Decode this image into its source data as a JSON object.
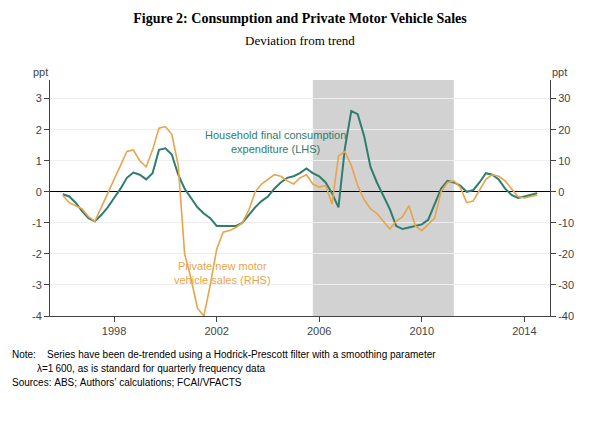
{
  "chart_data": {
    "type": "line",
    "title": "Figure 2: Consumption and Private Motor Vehicle Sales",
    "subtitle": "Deviation from trend",
    "ylabel": "ppt",
    "y2label": "ppt",
    "notes": [
      "Note:    Series have been de-trended using a Hodrick-Prescott filter with a smoothing parameter",
      "         λ=1 600, as is standard for quarterly frequency data",
      "Sources: ABS; Authors’ calculations; FCAI/VFACTS"
    ],
    "shading": {
      "start": 2005.75,
      "end": 2011.25,
      "color": "#d2d2d2"
    },
    "xlim": [
      1995.5,
      2015.0
    ],
    "xticks": [
      1998,
      2002,
      2006,
      2010,
      2014
    ],
    "ylim": [
      -4.0,
      3.6
    ],
    "yticks": [
      -4,
      -3,
      -2,
      -1,
      0,
      1,
      2,
      3
    ],
    "y2lim": [
      -40.0,
      36.0
    ],
    "y2ticks": [
      -40,
      -30,
      -20,
      -10,
      0,
      10,
      20,
      30
    ],
    "grid": true,
    "x": [
      1996.0,
      1996.25,
      1996.5,
      1996.75,
      1997.0,
      1997.25,
      1997.5,
      1997.75,
      1998.0,
      1998.25,
      1998.5,
      1998.75,
      1999.0,
      1999.25,
      1999.5,
      1999.75,
      2000.0,
      2000.25,
      2000.5,
      2000.75,
      2001.0,
      2001.25,
      2001.5,
      2001.75,
      2002.0,
      2002.25,
      2002.5,
      2002.75,
      2003.0,
      2003.25,
      2003.5,
      2003.75,
      2004.0,
      2004.25,
      2004.5,
      2004.75,
      2005.0,
      2005.25,
      2005.5,
      2005.75,
      2006.0,
      2006.25,
      2006.5,
      2006.75,
      2007.0,
      2007.25,
      2007.5,
      2007.75,
      2008.0,
      2008.25,
      2008.5,
      2008.75,
      2009.0,
      2009.25,
      2009.5,
      2009.75,
      2010.0,
      2010.25,
      2010.5,
      2010.75,
      2011.0,
      2011.25,
      2011.5,
      2011.75,
      2012.0,
      2012.25,
      2012.5,
      2012.75,
      2013.0,
      2013.25,
      2013.5,
      2013.75,
      2014.0,
      2014.25,
      2014.5
    ],
    "series": [
      {
        "name": "Private new motor\nvehicle sales (RHS)",
        "color": "#E8A44A",
        "axis": "y2",
        "values": [
          -1.2,
          -3.5,
          -4.5,
          -5.5,
          -8.0,
          -9.5,
          -5.0,
          -0.5,
          3.5,
          8.0,
          13.0,
          13.5,
          10.0,
          8.0,
          13.5,
          20.5,
          21.0,
          18.5,
          8.5,
          -20.0,
          -28.0,
          -37.5,
          -40.0,
          -30.0,
          -18.5,
          -13.0,
          -12.5,
          -11.5,
          -10.0,
          -6.0,
          0.0,
          2.5,
          4.0,
          5.5,
          5.0,
          3.5,
          2.5,
          4.5,
          5.5,
          2.5,
          1.5,
          2.0,
          -4.0,
          11.5,
          13.0,
          8.5,
          2.0,
          -2.5,
          -5.5,
          -7.0,
          -9.5,
          -12.0,
          -9.5,
          -8.0,
          -4.5,
          -11.0,
          -12.5,
          -10.5,
          -8.5,
          0.0,
          3.0,
          3.5,
          1.5,
          -3.5,
          -3.0,
          0.5,
          4.0,
          5.5,
          5.0,
          3.5,
          1.0,
          -1.5,
          -2.0,
          -1.5,
          -1.0
        ]
      },
      {
        "name": "Household final consumption\nexpenditure (LHS)",
        "color": "#2E7D6E",
        "axis": "y",
        "values": [
          -0.08,
          -0.15,
          -0.35,
          -0.62,
          -0.85,
          -0.95,
          -0.75,
          -0.5,
          -0.2,
          0.1,
          0.45,
          0.62,
          0.55,
          0.4,
          0.6,
          1.35,
          1.4,
          1.2,
          0.55,
          0.1,
          -0.2,
          -0.5,
          -0.7,
          -0.85,
          -1.1,
          -1.1,
          -1.1,
          -1.1,
          -1.0,
          -0.75,
          -0.5,
          -0.3,
          -0.15,
          0.1,
          0.3,
          0.45,
          0.5,
          0.6,
          0.75,
          0.6,
          0.5,
          0.3,
          -0.05,
          -0.5,
          1.4,
          2.6,
          2.5,
          1.8,
          0.8,
          0.3,
          -0.1,
          -0.55,
          -1.1,
          -1.2,
          -1.15,
          -1.1,
          -1.05,
          -0.9,
          -0.4,
          0.1,
          0.35,
          0.3,
          0.2,
          0.0,
          0.05,
          0.3,
          0.6,
          0.55,
          0.4,
          0.1,
          -0.1,
          -0.2,
          -0.15,
          -0.1,
          -0.05
        ]
      }
    ]
  }
}
